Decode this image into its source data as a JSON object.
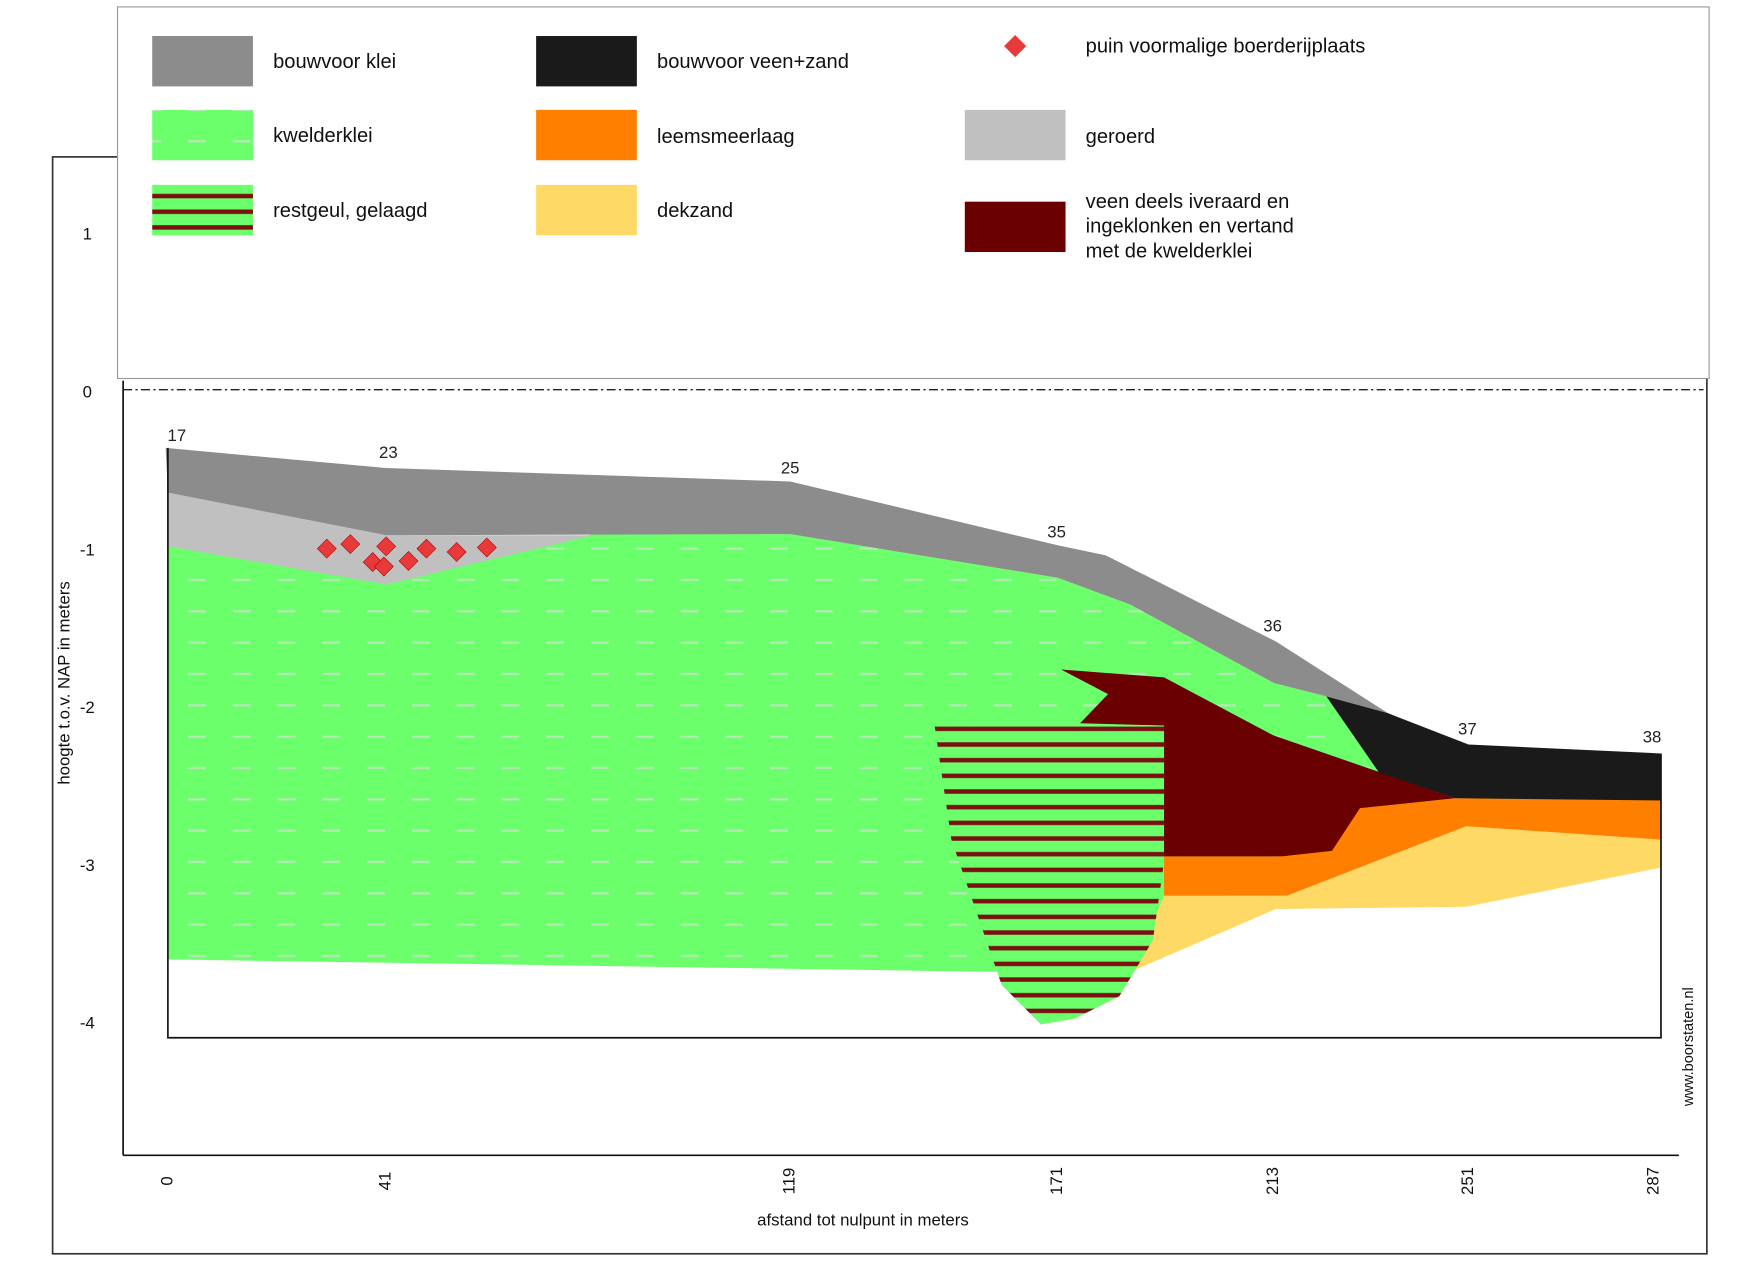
{
  "legend": [
    {
      "label": "bouwvoor klei"
    },
    {
      "label": "bouwvoor veen+zand"
    },
    {
      "label": "puin voormalige boerderijplaats"
    },
    {
      "label": "kwelderklei"
    },
    {
      "label": "leemsmeerlaag"
    },
    {
      "label": "geroerd"
    },
    {
      "label": "restgeul, gelaagd"
    },
    {
      "label": "dekzand"
    },
    {
      "lines": [
        "veen deels iveraard en",
        "ingeklonken en vertand",
        "met de kwelderklei"
      ]
    }
  ],
  "y_axis": {
    "title": "hoogte t.o.v. NAP in meters",
    "ticks": [
      1,
      0,
      -1,
      -2,
      -3,
      -4
    ]
  },
  "x_axis": {
    "title": "afstand tot nulpunt in meters",
    "ticks": [
      0,
      41,
      119,
      171,
      213,
      251,
      287
    ]
  },
  "boreholes": [
    17,
    23,
    25,
    35,
    36,
    37,
    38
  ],
  "credit": "www.boorstaten.nl"
}
